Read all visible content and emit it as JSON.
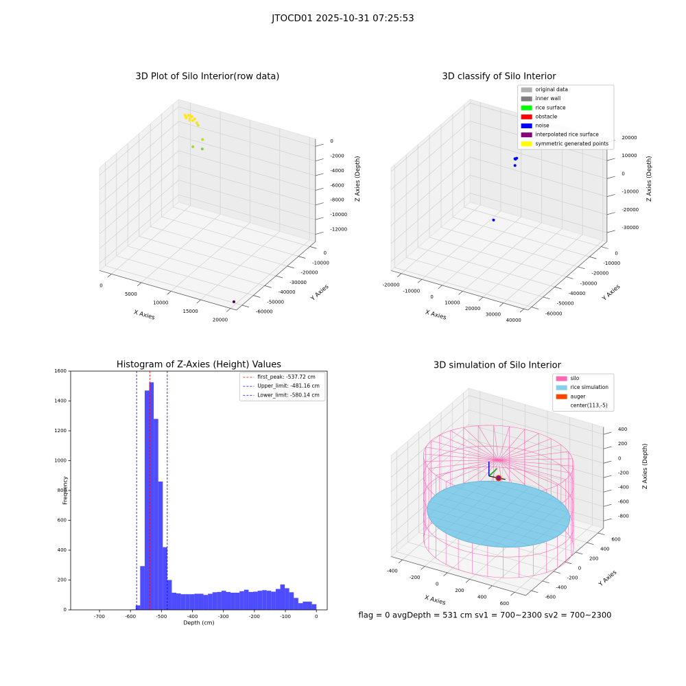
{
  "title": "JTOCD01 2025-10-31 07:25:53",
  "footer": "flag = 0     avgDepth = 531 cm  sv1 = 700~2300  sv2 = 700~2300",
  "chart_data": [
    {
      "type": "scatter3d",
      "title": "3D Plot of Silo Interior(row data)",
      "xlabel": "X Axies",
      "ylabel": "Y Axies",
      "zlabel": "Z Axies (Depth)",
      "xlim": [
        -2000,
        21000
      ],
      "xticks": [
        0,
        5000,
        10000,
        15000,
        20000
      ],
      "ylim": [
        -65000,
        5000
      ],
      "yticks": [
        0,
        -10000,
        -20000,
        -30000,
        -40000,
        -50000,
        -60000
      ],
      "zlim": [
        -13000,
        1000
      ],
      "zticks": [
        0,
        -2000,
        -4000,
        -6000,
        -8000,
        -10000,
        -12000
      ],
      "points": {
        "x": [
          0,
          300,
          600,
          900,
          1200,
          1500,
          400,
          800,
          1100,
          1700,
          2200,
          2600,
          4500,
          5200,
          4000,
          20000
        ],
        "y": [
          0,
          -500,
          200,
          -300,
          0,
          -800,
          -1000,
          500,
          -1500,
          -200,
          -1000,
          -2000,
          -8000,
          -12000,
          -14000,
          -62000
        ],
        "z": [
          0,
          -100,
          100,
          -200,
          50,
          -300,
          -150,
          80,
          -250,
          -100,
          -400,
          -500,
          -1200,
          -1800,
          -1500,
          -12500
        ],
        "colors": [
          "#fde725",
          "#fde725",
          "#fde725",
          "#fde725",
          "#fde725",
          "#fde725",
          "#fde725",
          "#fde725",
          "#fde725",
          "#fde725",
          "#f2e51d",
          "#e5e419",
          "#b5de2b",
          "#7ad151",
          "#a0da39",
          "#440154"
        ]
      }
    },
    {
      "type": "scatter3d",
      "title": "3D classify of Silo Interior",
      "xlabel": "X Axies",
      "ylabel": "Y Axies",
      "zlabel": "Z Axies (Depth)",
      "xlim": [
        -25000,
        42000
      ],
      "xticks": [
        -20000,
        -10000,
        0,
        10000,
        20000,
        30000,
        40000
      ],
      "ylim": [
        -63000,
        5000
      ],
      "yticks": [
        0,
        -10000,
        -20000,
        -30000,
        -40000,
        -50000,
        -60000
      ],
      "zlim": [
        -35000,
        22000
      ],
      "zticks": [
        20000,
        10000,
        0,
        -10000,
        -20000,
        -30000
      ],
      "legend": "upper right",
      "series": [
        {
          "name": "original data",
          "color": "#b0b0b0",
          "x": [],
          "y": [],
          "z": []
        },
        {
          "name": "inner wall",
          "color": "#808080",
          "x": [],
          "y": [],
          "z": []
        },
        {
          "name": "rice surface",
          "color": "#00ff00",
          "x": [],
          "y": [],
          "z": []
        },
        {
          "name": "obstacle",
          "color": "#ff0000",
          "x": [],
          "y": [],
          "z": []
        },
        {
          "name": "noise",
          "color": "#0000ff",
          "x": [
            0,
            300,
            -400,
            500,
            1500,
            -5000
          ],
          "y": [
            0,
            -500,
            300,
            200,
            -3000,
            -10000
          ],
          "z": [
            0,
            200,
            -200,
            400,
            -1500,
            -30000
          ]
        },
        {
          "name": "interpolated rice surface",
          "color": "#800080",
          "x": [],
          "y": [],
          "z": []
        },
        {
          "name": "symmetric generated points",
          "color": "#ffff00",
          "x": [],
          "y": [],
          "z": []
        }
      ]
    },
    {
      "type": "histogram",
      "title": "Histogram of Z-Axies (Height) Values",
      "xlabel": "Depth (cm)",
      "ylabel": "Frequency",
      "color": "#4d4dff",
      "bins": [
        -729,
        -714.42,
        -699.84,
        -685.26,
        -670.68,
        -656.1,
        -641.52,
        -626.94,
        -612.36,
        -597.78,
        -583.2,
        -568.62,
        -554.04,
        -539.46,
        -524.88,
        -510.3,
        -495.72,
        -481.14,
        -466.56,
        -451.98,
        -437.4,
        -422.82,
        -408.24,
        -393.66,
        -379.08,
        -364.5,
        -349.92,
        -335.34,
        -320.76,
        -306.18,
        -291.6,
        -277.02,
        -262.44,
        -247.86,
        -233.28,
        -218.7,
        -204.12,
        -189.54,
        -174.96,
        -160.38,
        -145.8,
        -131.22,
        -116.64,
        -102.06,
        -87.48,
        -72.9,
        -58.32,
        -43.74,
        -29.16,
        -14.58,
        0
      ],
      "counts": [
        0,
        0,
        0,
        0,
        0,
        0,
        0,
        0,
        0,
        3,
        30,
        293,
        1470,
        1525,
        1280,
        860,
        420,
        200,
        115,
        110,
        105,
        105,
        105,
        108,
        108,
        100,
        108,
        118,
        120,
        128,
        120,
        115,
        115,
        125,
        135,
        120,
        122,
        128,
        132,
        128,
        122,
        140,
        170,
        145,
        118,
        80,
        45,
        55,
        55,
        38
      ],
      "xlim": [
        -793,
        35
      ],
      "xticks": [
        -700,
        -600,
        -500,
        -400,
        -300,
        -200,
        -100,
        0
      ],
      "ylim": [
        0,
        1600
      ],
      "yticks": [
        0,
        200,
        400,
        600,
        800,
        1000,
        1200,
        1400,
        1600
      ],
      "legend": "upper right",
      "vlines": [
        {
          "label": "first_peak: -537.72 cm",
          "value": -537.72,
          "color": "#ff0000"
        },
        {
          "label": "Upper_limit: -481.16 cm",
          "value": -481.16,
          "color": "#0000ff"
        },
        {
          "label": "Lower_limit: -580.14 cm",
          "value": -580.14,
          "color": "#0000ff"
        }
      ]
    },
    {
      "type": "silo3d",
      "title": "3D simulation of Silo Interior",
      "xlabel": "X Axies",
      "ylabel": "Y Axies",
      "zlabel": "Z Axies (Depth)",
      "xlim": [
        -500,
        700
      ],
      "xticks": [
        -400,
        -200,
        0,
        200,
        400,
        600
      ],
      "ylim": [
        -700,
        700
      ],
      "yticks": [
        -600,
        -400,
        -200,
        0,
        200,
        400,
        600
      ],
      "zlim": [
        -900,
        500
      ],
      "zticks": [
        -800,
        -600,
        -400,
        -200,
        0,
        200,
        400
      ],
      "legend": "upper right",
      "series": [
        {
          "name": "silo",
          "color": "#ff69b4",
          "radius": 600,
          "z_bottom": -900,
          "z_top": 250
        },
        {
          "name": "rice simulation",
          "color": "#87ceeb",
          "radius": 570,
          "z": -500
        },
        {
          "name": "auger",
          "color": "#ff4500",
          "z": 0
        }
      ],
      "center": {
        "label": "center(113,-5)",
        "x": 113,
        "y": -5
      }
    }
  ]
}
